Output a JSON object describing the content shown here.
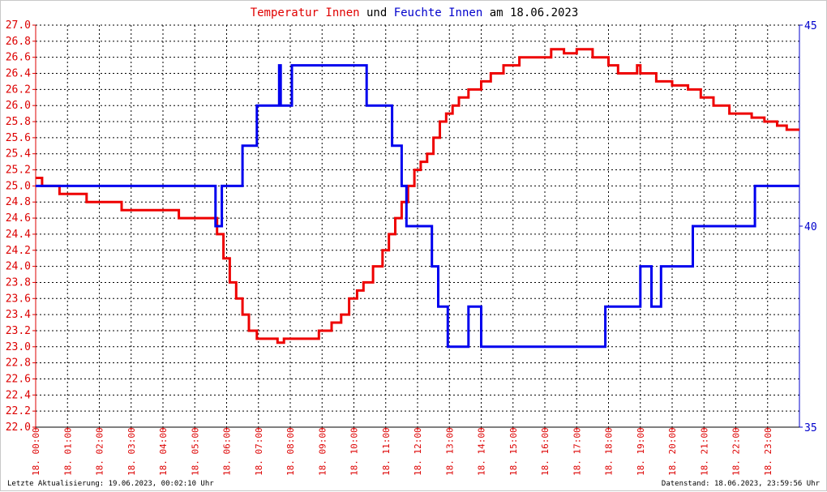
{
  "title_parts": [
    {
      "text": "Temperatur Innen",
      "color": "#e00000"
    },
    {
      "text": "und",
      "color": "#000000"
    },
    {
      "text": "Feuchte Innen",
      "color": "#0000cc"
    },
    {
      "text": "am 18.06.2023",
      "color": "#000000"
    }
  ],
  "footer": {
    "left": "Letzte Aktualisierung: 19.06.2023, 00:02:10 Uhr",
    "right": "Datenstand: 18.06.2023, 23:59:56 Uhr"
  },
  "colors": {
    "temperature": "#ee0000",
    "humidity": "#0000ee",
    "grid": "#000000",
    "left_axis": "#dd0000",
    "right_axis": "#0000cc"
  },
  "chart_data": {
    "type": "line",
    "title": "Temperatur Innen und Feuchte Innen am 18.06.2023",
    "grid": true,
    "x_unit": "hours",
    "xlim": [
      0,
      24
    ],
    "x_tick_labels": [
      "18. 00:00",
      "18. 01:00",
      "18. 02:00",
      "18. 03:00",
      "18. 04:00",
      "18. 05:00",
      "18. 06:00",
      "18. 07:00",
      "18. 08:00",
      "18. 09:00",
      "18. 10:00",
      "18. 11:00",
      "18. 12:00",
      "18. 13:00",
      "18. 14:00",
      "18. 15:00",
      "18. 16:00",
      "18. 17:00",
      "18. 18:00",
      "18. 19:00",
      "18. 20:00",
      "18. 21:00",
      "18. 22:00",
      "18. 23:00"
    ],
    "y_left": {
      "lim": [
        22.0,
        27.0
      ],
      "ticks": [
        "22.0",
        "22.2",
        "22.4",
        "22.6",
        "22.8",
        "23.0",
        "23.2",
        "23.4",
        "23.6",
        "23.8",
        "24.0",
        "24.2",
        "24.4",
        "24.6",
        "24.8",
        "25.0",
        "25.2",
        "25.4",
        "25.6",
        "25.8",
        "26.0",
        "26.2",
        "26.4",
        "26.6",
        "26.8",
        "27.0"
      ]
    },
    "y_right": {
      "lim": [
        35,
        45
      ],
      "ticks": [
        "35",
        "40",
        "45"
      ]
    },
    "series": [
      {
        "name": "Temperatur Innen",
        "axis": "left",
        "points": [
          [
            0.0,
            25.1
          ],
          [
            0.2,
            25.0
          ],
          [
            0.75,
            24.9
          ],
          [
            1.6,
            24.8
          ],
          [
            2.7,
            24.7
          ],
          [
            4.5,
            24.6
          ],
          [
            5.55,
            24.6
          ],
          [
            5.7,
            24.4
          ],
          [
            5.9,
            24.1
          ],
          [
            6.1,
            23.8
          ],
          [
            6.3,
            23.6
          ],
          [
            6.5,
            23.4
          ],
          [
            6.7,
            23.2
          ],
          [
            6.95,
            23.1
          ],
          [
            7.6,
            23.05
          ],
          [
            7.8,
            23.1
          ],
          [
            8.5,
            23.1
          ],
          [
            8.9,
            23.2
          ],
          [
            9.3,
            23.3
          ],
          [
            9.6,
            23.4
          ],
          [
            9.85,
            23.6
          ],
          [
            10.1,
            23.7
          ],
          [
            10.3,
            23.8
          ],
          [
            10.6,
            24.0
          ],
          [
            10.9,
            24.2
          ],
          [
            11.1,
            24.4
          ],
          [
            11.3,
            24.6
          ],
          [
            11.5,
            24.8
          ],
          [
            11.7,
            25.0
          ],
          [
            11.9,
            25.2
          ],
          [
            12.1,
            25.3
          ],
          [
            12.3,
            25.4
          ],
          [
            12.5,
            25.6
          ],
          [
            12.7,
            25.8
          ],
          [
            12.9,
            25.9
          ],
          [
            13.1,
            26.0
          ],
          [
            13.3,
            26.1
          ],
          [
            13.6,
            26.2
          ],
          [
            14.0,
            26.3
          ],
          [
            14.3,
            26.4
          ],
          [
            14.7,
            26.5
          ],
          [
            15.2,
            26.6
          ],
          [
            16.2,
            26.7
          ],
          [
            16.6,
            26.65
          ],
          [
            17.0,
            26.7
          ],
          [
            17.5,
            26.6
          ],
          [
            18.0,
            26.5
          ],
          [
            18.3,
            26.4
          ],
          [
            18.9,
            26.5
          ],
          [
            19.0,
            26.4
          ],
          [
            19.5,
            26.3
          ],
          [
            20.0,
            26.25
          ],
          [
            20.5,
            26.2
          ],
          [
            20.9,
            26.1
          ],
          [
            21.3,
            26.0
          ],
          [
            21.8,
            25.9
          ],
          [
            22.5,
            25.85
          ],
          [
            22.9,
            25.8
          ],
          [
            23.3,
            25.75
          ],
          [
            23.6,
            25.7
          ],
          [
            24.0,
            25.7
          ]
        ]
      },
      {
        "name": "Feuchte Innen",
        "axis": "right",
        "points": [
          [
            0.0,
            41
          ],
          [
            5.65,
            41
          ],
          [
            5.65,
            40
          ],
          [
            5.85,
            40
          ],
          [
            5.85,
            41
          ],
          [
            6.5,
            41
          ],
          [
            6.5,
            42
          ],
          [
            6.95,
            42
          ],
          [
            6.95,
            43
          ],
          [
            7.65,
            43
          ],
          [
            7.65,
            44
          ],
          [
            7.7,
            44
          ],
          [
            7.7,
            43
          ],
          [
            8.05,
            43
          ],
          [
            8.05,
            44
          ],
          [
            10.4,
            44
          ],
          [
            10.4,
            43
          ],
          [
            11.2,
            43
          ],
          [
            11.2,
            42
          ],
          [
            11.5,
            42
          ],
          [
            11.5,
            41
          ],
          [
            11.65,
            41
          ],
          [
            11.65,
            40
          ],
          [
            12.45,
            40
          ],
          [
            12.45,
            39
          ],
          [
            12.65,
            39
          ],
          [
            12.65,
            38
          ],
          [
            12.95,
            38
          ],
          [
            12.95,
            37
          ],
          [
            13.6,
            37
          ],
          [
            13.6,
            38
          ],
          [
            14.0,
            38
          ],
          [
            14.0,
            37
          ],
          [
            17.9,
            37
          ],
          [
            17.9,
            38
          ],
          [
            19.0,
            38
          ],
          [
            19.0,
            39
          ],
          [
            19.35,
            39
          ],
          [
            19.35,
            38
          ],
          [
            19.65,
            38
          ],
          [
            19.65,
            39
          ],
          [
            20.65,
            39
          ],
          [
            20.65,
            40
          ],
          [
            22.6,
            40
          ],
          [
            22.6,
            41
          ],
          [
            24.0,
            41
          ]
        ]
      }
    ]
  }
}
